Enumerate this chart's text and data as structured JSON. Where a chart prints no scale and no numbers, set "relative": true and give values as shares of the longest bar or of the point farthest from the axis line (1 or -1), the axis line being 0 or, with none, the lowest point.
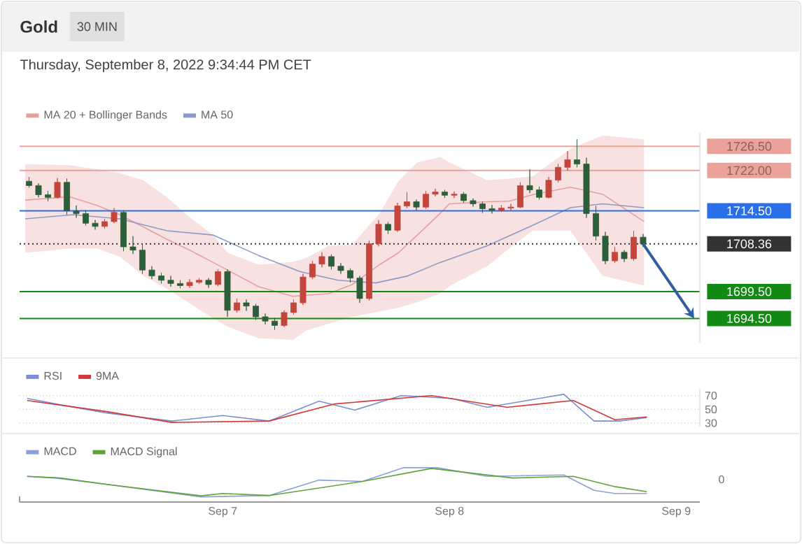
{
  "chart_data": [
    {
      "type": "candlestick",
      "title": "Gold",
      "subtitle": "30 MIN",
      "annotations": [
        "Thursday, September 8, 2022 9:34:44 PM CET"
      ],
      "x": [
        "2022-09-06T03:30",
        "2022-09-06T04:30",
        "2022-09-06T05:30",
        "2022-09-06T06:30",
        "2022-09-06T07:30",
        "2022-09-06T08:30",
        "2022-09-06T09:30",
        "2022-09-06T10:30",
        "2022-09-06T11:30",
        "2022-09-06T12:30",
        "2022-09-06T13:30",
        "2022-09-06T14:30",
        "2022-09-06T15:30",
        "2022-09-06T16:30",
        "2022-09-06T17:30",
        "2022-09-06T18:30",
        "2022-09-06T19:30",
        "2022-09-06T20:30",
        "2022-09-06T21:30",
        "2022-09-06T22:30",
        "2022-09-06T23:30",
        "2022-09-07T00:30",
        "2022-09-07T01:30",
        "2022-09-07T02:30",
        "2022-09-07T03:30",
        "2022-09-07T04:30",
        "2022-09-07T05:30",
        "2022-09-07T06:30",
        "2022-09-07T07:30",
        "2022-09-07T08:30",
        "2022-09-07T09:30",
        "2022-09-07T10:30",
        "2022-09-07T11:30",
        "2022-09-07T12:30",
        "2022-09-07T13:30",
        "2022-09-07T14:30",
        "2022-09-07T15:30",
        "2022-09-07T16:30",
        "2022-09-07T17:30",
        "2022-09-07T18:30",
        "2022-09-07T19:30",
        "2022-09-07T20:30",
        "2022-09-07T21:30",
        "2022-09-07T22:30",
        "2022-09-07T23:30",
        "2022-09-08T00:30",
        "2022-09-08T01:30",
        "2022-09-08T02:30",
        "2022-09-08T03:30",
        "2022-09-08T04:30",
        "2022-09-08T05:30",
        "2022-09-08T06:30",
        "2022-09-08T07:30",
        "2022-09-08T08:30",
        "2022-09-08T09:30",
        "2022-09-08T10:30",
        "2022-09-08T11:30",
        "2022-09-08T12:30",
        "2022-09-08T13:30",
        "2022-09-08T14:30",
        "2022-09-08T15:30",
        "2022-09-08T16:30",
        "2022-09-08T17:30",
        "2022-09-08T18:30",
        "2022-09-08T19:30",
        "2022-09-08T20:30"
      ],
      "ohlc": [
        [
          1720.0,
          1720.8,
          1718.8,
          1719.2
        ],
        [
          1719.2,
          1719.6,
          1717.0,
          1717.5
        ],
        [
          1717.5,
          1718.2,
          1716.3,
          1717.0
        ],
        [
          1717.0,
          1720.6,
          1716.8,
          1719.8
        ],
        [
          1719.8,
          1720.5,
          1713.8,
          1714.5
        ],
        [
          1714.5,
          1715.5,
          1713.2,
          1714.0
        ],
        [
          1714.0,
          1714.6,
          1711.8,
          1712.2
        ],
        [
          1712.2,
          1712.8,
          1711.0,
          1711.6
        ],
        [
          1711.6,
          1713.0,
          1711.2,
          1712.5
        ],
        [
          1712.5,
          1715.0,
          1712.2,
          1714.2
        ],
        [
          1714.2,
          1714.6,
          1707.0,
          1707.8
        ],
        [
          1707.8,
          1709.8,
          1706.5,
          1707.2
        ],
        [
          1707.2,
          1708.4,
          1702.8,
          1703.5
        ],
        [
          1703.5,
          1704.2,
          1701.8,
          1702.4
        ],
        [
          1702.4,
          1703.0,
          1701.0,
          1701.6
        ],
        [
          1701.6,
          1702.4,
          1700.4,
          1701.0
        ],
        [
          1701.0,
          1701.6,
          1700.1,
          1700.6
        ],
        [
          1700.6,
          1701.8,
          1700.2,
          1701.2
        ],
        [
          1701.2,
          1702.0,
          1700.9,
          1701.6
        ],
        [
          1701.6,
          1702.0,
          1700.2,
          1700.8
        ],
        [
          1700.8,
          1703.6,
          1700.5,
          1703.2
        ],
        [
          1703.2,
          1703.6,
          1694.8,
          1696.0
        ],
        [
          1696.0,
          1698.2,
          1695.6,
          1697.4
        ],
        [
          1697.4,
          1698.0,
          1695.9,
          1696.8
        ],
        [
          1696.8,
          1697.2,
          1694.2,
          1694.8
        ],
        [
          1694.8,
          1695.4,
          1693.4,
          1694.0
        ],
        [
          1694.0,
          1694.6,
          1692.4,
          1693.2
        ],
        [
          1693.2,
          1696.0,
          1692.9,
          1695.6
        ],
        [
          1695.6,
          1698.0,
          1695.2,
          1697.4
        ],
        [
          1697.4,
          1702.8,
          1697.0,
          1702.2
        ],
        [
          1702.2,
          1705.2,
          1701.8,
          1704.6
        ],
        [
          1704.6,
          1706.8,
          1704.0,
          1706.0
        ],
        [
          1706.0,
          1706.4,
          1703.6,
          1704.2
        ],
        [
          1704.2,
          1704.8,
          1702.8,
          1703.4
        ],
        [
          1703.4,
          1703.8,
          1701.2,
          1702.0
        ],
        [
          1702.0,
          1702.4,
          1697.4,
          1698.2
        ],
        [
          1698.2,
          1709.0,
          1697.8,
          1708.4
        ],
        [
          1708.4,
          1712.8,
          1707.9,
          1712.0
        ],
        [
          1712.0,
          1712.4,
          1710.2,
          1710.9
        ],
        [
          1710.9,
          1716.0,
          1710.6,
          1715.4
        ],
        [
          1715.4,
          1718.0,
          1715.0,
          1716.2
        ],
        [
          1716.2,
          1716.6,
          1714.6,
          1715.2
        ],
        [
          1715.2,
          1718.2,
          1714.9,
          1717.6
        ],
        [
          1717.6,
          1718.6,
          1717.2,
          1718.0
        ],
        [
          1718.0,
          1718.4,
          1716.9,
          1717.4
        ],
        [
          1717.4,
          1718.1,
          1716.9,
          1717.6
        ],
        [
          1717.6,
          1718.0,
          1716.0,
          1716.4
        ],
        [
          1716.4,
          1716.8,
          1715.3,
          1715.8
        ],
        [
          1715.8,
          1716.2,
          1714.1,
          1714.9
        ],
        [
          1714.9,
          1715.6,
          1714.0,
          1714.6
        ],
        [
          1714.6,
          1715.6,
          1714.3,
          1715.0
        ],
        [
          1715.0,
          1715.8,
          1714.6,
          1715.2
        ],
        [
          1715.2,
          1719.8,
          1715.0,
          1719.2
        ],
        [
          1719.2,
          1722.2,
          1717.8,
          1718.4
        ],
        [
          1718.4,
          1719.0,
          1716.6,
          1717.0
        ],
        [
          1717.0,
          1720.8,
          1716.8,
          1720.2
        ],
        [
          1720.2,
          1723.2,
          1719.8,
          1722.6
        ],
        [
          1722.6,
          1725.6,
          1722.0,
          1724.0
        ],
        [
          1724.0,
          1727.8,
          1722.6,
          1723.2
        ],
        [
          1723.2,
          1724.4,
          1713.2,
          1714.0
        ],
        [
          1714.0,
          1715.4,
          1709.0,
          1709.8
        ],
        [
          1709.8,
          1710.6,
          1704.6,
          1705.2
        ],
        [
          1705.2,
          1707.8,
          1704.8,
          1706.8
        ],
        [
          1706.8,
          1707.2,
          1705.0,
          1705.6
        ],
        [
          1705.6,
          1710.8,
          1705.2,
          1709.6
        ],
        [
          1709.6,
          1710.2,
          1707.8,
          1708.36
        ]
      ],
      "colors": [
        "#2d5e3a",
        "#2d5e3a",
        "#2d5e3a",
        "#c4453c",
        "#2d5e3a",
        "#2d5e3a",
        "#2d5e3a",
        "#2d5e3a",
        "#c4453c",
        "#c4453c",
        "#2d5e3a",
        "#2d5e3a",
        "#2d5e3a",
        "#2d5e3a",
        "#2d5e3a",
        "#2d5e3a",
        "#2d5e3a",
        "#c4453c",
        "#c4453c",
        "#2d5e3a",
        "#c4453c",
        "#2d5e3a",
        "#c4453c",
        "#2d5e3a",
        "#2d5e3a",
        "#2d5e3a",
        "#2d5e3a",
        "#c4453c",
        "#c4453c",
        "#c4453c",
        "#c4453c",
        "#c4453c",
        "#2d5e3a",
        "#2d5e3a",
        "#2d5e3a",
        "#2d5e3a",
        "#c4453c",
        "#c4453c",
        "#2d5e3a",
        "#c4453c",
        "#c4453c",
        "#2d5e3a",
        "#c4453c",
        "#c4453c",
        "#2d5e3a",
        "#c4453c",
        "#2d5e3a",
        "#2d5e3a",
        "#2d5e3a",
        "#2d5e3a",
        "#c4453c",
        "#c4453c",
        "#c4453c",
        "#2d5e3a",
        "#2d5e3a",
        "#c4453c",
        "#c4453c",
        "#c4453c",
        "#2d5e3a",
        "#2d5e3a",
        "#2d5e3a",
        "#2d5e3a",
        "#c4453c",
        "#2d5e3a",
        "#c4453c",
        "#2d5e3a"
      ],
      "series": [
        {
          "name": "MA 20 + Bollinger Bands",
          "type": "line",
          "color": "#e6a09c",
          "x": [
            "2022-09-06T03:06",
            "2022-09-06T07:48",
            "2022-09-06T10:42",
            "2022-09-06T13:06",
            "2022-09-06T15:36",
            "2022-09-06T18:06",
            "2022-09-06T20:30",
            "2022-09-06T23:00",
            "2022-09-07T00:30",
            "2022-09-07T03:48",
            "2022-09-07T07:24",
            "2022-09-07T08:48",
            "2022-09-07T11:12",
            "2022-09-07T13:42",
            "2022-09-07T16:36",
            "2022-09-07T18:36",
            "2022-09-07T20:36",
            "2022-09-07T23:00",
            "2022-09-08T00:00",
            "2022-09-08T04:00",
            "2022-09-08T06:18",
            "2022-09-08T08:48",
            "2022-09-08T12:48",
            "2022-09-08T16:12",
            "2022-09-08T20:36"
          ],
          "values": [
            1716.5,
            1717.1,
            1715.5,
            1713.8,
            1711.5,
            1709.2,
            1707.2,
            1704.9,
            1703.5,
            1700.4,
            1698.6,
            1698.8,
            1699.1,
            1700.8,
            1704.5,
            1706.7,
            1710.0,
            1714.0,
            1715.8,
            1716.2,
            1716.3,
            1717.5,
            1718.9,
            1717.6,
            1712.5
          ],
          "lower": [
            1706.7,
            1707.5,
            1707.5,
            1706.0,
            1702.4,
            1700.0,
            1697.3,
            1694.5,
            1693.0,
            1690.8,
            1690.5,
            1692.2,
            1693.5,
            1694.8,
            1695.8,
            1696.5,
            1697.5,
            1699.1,
            1700.5,
            1704.2,
            1707.5,
            1710.8,
            1710.8,
            1702.4,
            1700.6
          ],
          "upper": [
            1723.2,
            1723.0,
            1722.2,
            1721.5,
            1720.2,
            1717.0,
            1713.3,
            1710.0,
            1706.7,
            1704.5,
            1705.0,
            1705.7,
            1708.0,
            1708.2,
            1714.0,
            1720.0,
            1723.5,
            1724.5,
            1723.5,
            1720.2,
            1720.5,
            1720.9,
            1726.0,
            1728.5,
            1727.8
          ]
        },
        {
          "name": "MA 50",
          "type": "line",
          "color": "#8c9ac6",
          "x": [
            "2022-09-06T03:06",
            "2022-09-06T08:12",
            "2022-09-06T13:06",
            "2022-09-06T18:06",
            "2022-09-06T23:00",
            "2022-09-07T03:48",
            "2022-09-07T08:12",
            "2022-09-07T12:12",
            "2022-09-07T16:12",
            "2022-09-07T19:36",
            "2022-09-07T23:00",
            "2022-09-08T04:00",
            "2022-09-08T08:48",
            "2022-09-08T12:48",
            "2022-09-08T16:12",
            "2022-09-08T20:36"
          ],
          "values": [
            1713.0,
            1713.8,
            1713.0,
            1710.8,
            1710.0,
            1706.2,
            1703.2,
            1701.6,
            1701.1,
            1702.4,
            1704.9,
            1708.0,
            1711.8,
            1715.1,
            1715.8,
            1715.1
          ]
        }
      ],
      "ref_lines": [
        {
          "axis": "y",
          "value": 1726.5,
          "color": "#eba29a",
          "line_style": "solid"
        },
        {
          "axis": "y",
          "value": 1722.0,
          "color": "#eba29a",
          "line_style": "solid"
        },
        {
          "axis": "y",
          "value": 1714.5,
          "color": "#2a6ee8",
          "line_style": "solid"
        },
        {
          "axis": "y",
          "value": 1708.36,
          "color": "#333333",
          "line_style": "dotted"
        },
        {
          "axis": "y",
          "value": 1699.5,
          "color": "#138a13",
          "line_style": "solid"
        },
        {
          "axis": "y",
          "value": 1694.5,
          "color": "#138a13",
          "line_style": "solid"
        }
      ],
      "xlim": [
        "2022-09-06T02:30",
        "2022-09-09T02:30"
      ],
      "ylim": [
        1690,
        1729
      ],
      "yticks": [
        {
          "value": 1694.5,
          "label": "1694.50"
        },
        {
          "value": 1699.5,
          "label": "1699.50"
        },
        {
          "value": 1708.36,
          "label": "1708.36"
        },
        {
          "value": 1714.5,
          "label": "1714.50"
        },
        {
          "value": 1722.0,
          "label": "1722.00"
        },
        {
          "value": 1726.5,
          "label": "1726.50"
        }
      ],
      "tick_labels": "y",
      "legend": "top left"
    },
    {
      "type": "line",
      "series": [
        {
          "name": "RSI",
          "color": "#7b8fd0",
          "x": [
            "2022-09-06T03:18",
            "2022-09-06T06:18",
            "2022-09-06T11:36",
            "2022-09-06T18:36",
            "2022-09-07T00:00",
            "2022-09-07T04:54",
            "2022-09-07T10:12",
            "2022-09-07T14:00",
            "2022-09-07T18:54",
            "2022-09-08T00:12",
            "2022-09-08T04:00",
            "2022-09-08T07:48",
            "2022-09-08T12:06",
            "2022-09-08T15:18",
            "2022-09-08T18:00",
            "2022-09-08T20:54"
          ],
          "values": [
            66,
            58,
            45,
            33,
            41,
            33,
            62,
            49,
            70,
            66,
            53,
            62,
            72,
            33,
            33,
            38
          ]
        },
        {
          "name": "9MA",
          "color": "#d03a3a",
          "x": [
            "2022-09-06T03:18",
            "2022-09-06T11:36",
            "2022-09-06T18:36",
            "2022-09-07T04:54",
            "2022-09-07T11:54",
            "2022-09-07T22:06",
            "2022-09-08T06:06",
            "2022-09-08T13:06",
            "2022-09-08T17:30",
            "2022-09-08T20:54"
          ],
          "values": [
            63,
            47,
            31,
            33,
            58,
            70,
            53,
            63,
            35,
            39
          ]
        }
      ],
      "xlim": [
        "2022-09-06T02:30",
        "2022-09-09T02:30"
      ],
      "ylim": [
        25,
        80
      ],
      "yticks": [
        30,
        50,
        70
      ],
      "grid": "y",
      "tick_labels": "y",
      "legend": "top left"
    },
    {
      "type": "line",
      "relative": true,
      "annotations": [
        "0"
      ],
      "series": [
        {
          "name": "MACD",
          "color": "#8da0d8",
          "x": [
            "2022-09-06T03:18",
            "2022-09-06T06:18",
            "2022-09-06T11:36",
            "2022-09-06T21:42",
            "2022-09-07T04:54",
            "2022-09-07T10:12",
            "2022-09-07T14:48",
            "2022-09-07T19:06",
            "2022-09-07T22:42",
            "2022-09-08T04:00",
            "2022-09-08T12:06",
            "2022-09-08T15:18",
            "2022-09-08T17:30",
            "2022-09-08T20:54"
          ],
          "values": [
            0.75,
            0.7,
            0.52,
            0.15,
            0.19,
            0.64,
            0.6,
            1.0,
            1.0,
            0.75,
            0.79,
            0.34,
            0.25,
            0.25
          ]
        },
        {
          "name": "MACD Signal",
          "color": "#5ea33a",
          "x": [
            "2022-09-06T03:18",
            "2022-09-06T06:48",
            "2022-09-06T11:36",
            "2022-09-06T21:42",
            "2022-09-07T00:00",
            "2022-09-07T04:54",
            "2022-09-07T14:48",
            "2022-09-07T22:06",
            "2022-09-08T06:42",
            "2022-09-08T13:06",
            "2022-09-08T17:30",
            "2022-09-08T20:54"
          ],
          "values": [
            0.75,
            0.7,
            0.52,
            0.18,
            0.25,
            0.19,
            0.6,
            0.98,
            0.7,
            0.75,
            0.45,
            0.3
          ]
        }
      ],
      "xlim": [
        "2022-09-06T02:30",
        "2022-09-09T02:30"
      ],
      "xticks": [
        {
          "value": "2022-09-07",
          "label": "Sep 7"
        },
        {
          "value": "2022-09-08",
          "label": "Sep 8"
        },
        {
          "value": "2022-09-09",
          "label": "Sep 9"
        }
      ],
      "tick_labels": "x",
      "legend": "top left"
    }
  ]
}
